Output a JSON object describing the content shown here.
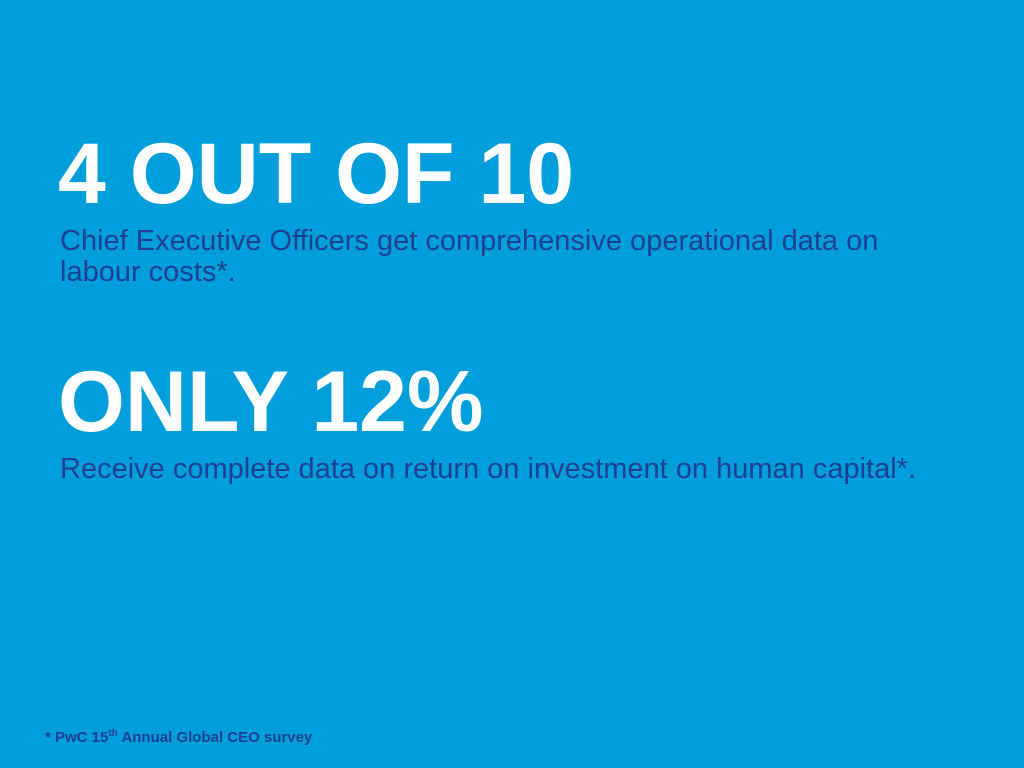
{
  "stats": [
    {
      "headline": "4 OUT OF 10",
      "description": "Chief Executive Officers get comprehensive operational data on labour costs*."
    },
    {
      "headline": "ONLY 12%",
      "description": "Receive complete data on return on investment on human capital*."
    }
  ],
  "footnote": {
    "prefix": "* PwC 15",
    "superscript": "th",
    "suffix": " Annual Global CEO survey"
  }
}
